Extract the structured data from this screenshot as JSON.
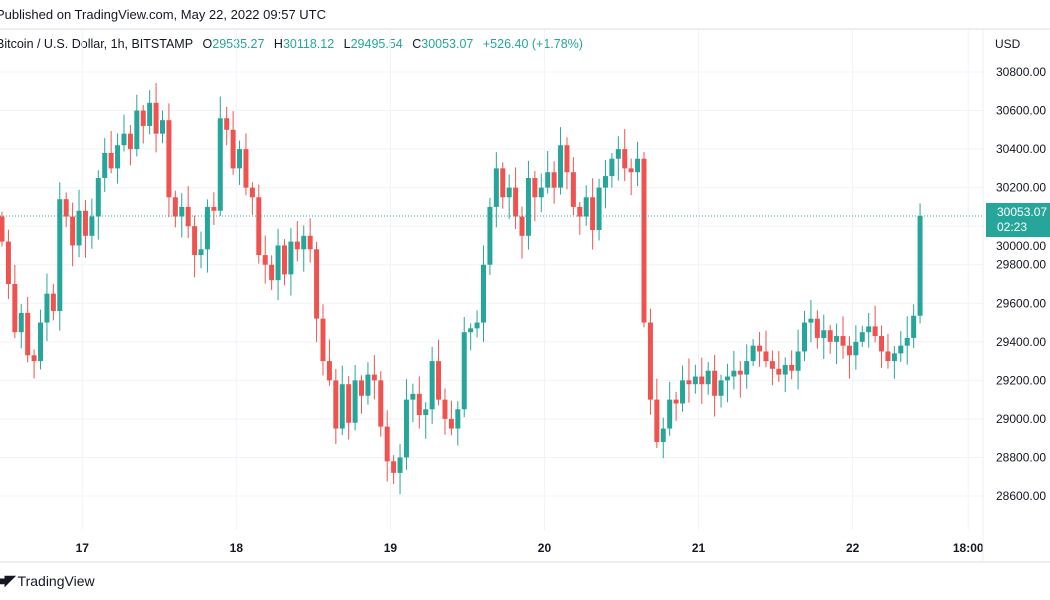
{
  "header": {
    "published": "Published on TradingView.com, May 22, 2022 09:57 UTC",
    "symbol": "Bitcoin / U.S. Dollar, 1h, BITSTAMP",
    "o_label": "O",
    "o": "29535.27",
    "h_label": "H",
    "h": "30118.12",
    "l_label": "L",
    "l": "29495.54",
    "c_label": "C",
    "c": "30053.07",
    "change": "+526.40 (+1.78%)",
    "currency": "USD"
  },
  "last_price": {
    "value": "30053.07",
    "countdown": "02:23"
  },
  "footer": {
    "brand": "TradingView"
  },
  "colors": {
    "up": "#26a69a",
    "down": "#ef5350",
    "grid": "#f0f3fa"
  },
  "chart_data": {
    "type": "candlestick",
    "interval": "1h",
    "ylim": [
      28500,
      30900
    ],
    "y_ticks": [
      28600,
      28800,
      29000,
      29200,
      29400,
      29600,
      29800,
      30000,
      30200,
      30400,
      30600,
      30800
    ],
    "y_tick_labels": [
      "28600.00",
      "28800.00",
      "29000.00",
      "29200.00",
      "29400.00",
      "29600.00",
      "29800.00",
      "30000.00",
      "30200.00",
      "30400.00",
      "30600.00",
      "30800.00"
    ],
    "x_ticks": [
      {
        "label": "17",
        "index": 12.5
      },
      {
        "label": "18",
        "index": 36.5
      },
      {
        "label": "19",
        "index": 60.5
      },
      {
        "label": "20",
        "index": 84.5
      },
      {
        "label": "21",
        "index": 108.5
      },
      {
        "label": "22",
        "index": 132.5
      },
      {
        "label": "18:00",
        "index": 150.5
      }
    ],
    "first_open": 30050,
    "closes": [
      29920,
      29700,
      29450,
      29550,
      29330,
      29300,
      29500,
      29650,
      29560,
      30140,
      30050,
      29900,
      30080,
      29950,
      30050,
      30250,
      30380,
      30300,
      30420,
      30480,
      30400,
      30600,
      30520,
      30640,
      30480,
      30550,
      30150,
      30050,
      30100,
      30000,
      29850,
      29880,
      30100,
      30080,
      30560,
      30500,
      30300,
      30400,
      30200,
      30150,
      29850,
      29800,
      29720,
      29900,
      29750,
      29920,
      29880,
      29950,
      29880,
      29520,
      29300,
      29200,
      28950,
      29180,
      28980,
      29200,
      29120,
      29230,
      29200,
      28960,
      28780,
      28720,
      28800,
      29100,
      29130,
      29020,
      29050,
      29300,
      29100,
      29000,
      28950,
      29050,
      29450,
      29470,
      29500,
      29800,
      30100,
      30300,
      30150,
      30200,
      30050,
      29950,
      30250,
      30150,
      30200,
      30280,
      30200,
      30420,
      30280,
      30100,
      30050,
      30150,
      29980,
      30200,
      30260,
      30350,
      30400,
      30300,
      30280,
      30350,
      29500,
      29100,
      28880,
      28950,
      29100,
      29080,
      29200,
      29180,
      29220,
      29180,
      29250,
      29120,
      29200,
      29220,
      29250,
      29230,
      29300,
      29380,
      29350,
      29300,
      29260,
      29230,
      29280,
      29250,
      29350,
      29500,
      29520,
      29420,
      29460,
      29400,
      29430,
      29380,
      29330,
      29400,
      29450,
      29480,
      29430,
      29350,
      29300,
      29340,
      29380,
      29420,
      29535.27,
      30053.07
    ],
    "last_candle": {
      "open": 29535.27,
      "high": 30118.12,
      "low": 29495.54,
      "close": 30053.07
    }
  }
}
